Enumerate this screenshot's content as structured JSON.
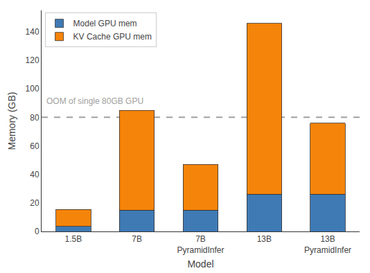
{
  "chart_data": {
    "type": "bar",
    "stacked": true,
    "categories": [
      "1.5B",
      "7B",
      "7B\nPyramidInfer",
      "13B",
      "13B\nPyramidInfer"
    ],
    "series": [
      {
        "name": "Model GPU mem",
        "color": "#3f7ab5",
        "values": [
          3.5,
          15,
          15,
          26,
          26
        ]
      },
      {
        "name": "KV Cache GPU mem",
        "color": "#f5840a",
        "values": [
          12,
          70,
          32,
          120,
          50
        ]
      }
    ],
    "annotations": [
      {
        "text": "OOM of single 80GB GPU",
        "y": 80,
        "line_style": "dashed",
        "color": "#a0a0a0"
      }
    ],
    "xlabel": "Model",
    "ylabel": "Memory (GB)",
    "ylim": [
      0,
      155
    ],
    "yticks": [
      0,
      20,
      40,
      60,
      80,
      100,
      120,
      140
    ],
    "grid": false,
    "legend": "upper left"
  }
}
